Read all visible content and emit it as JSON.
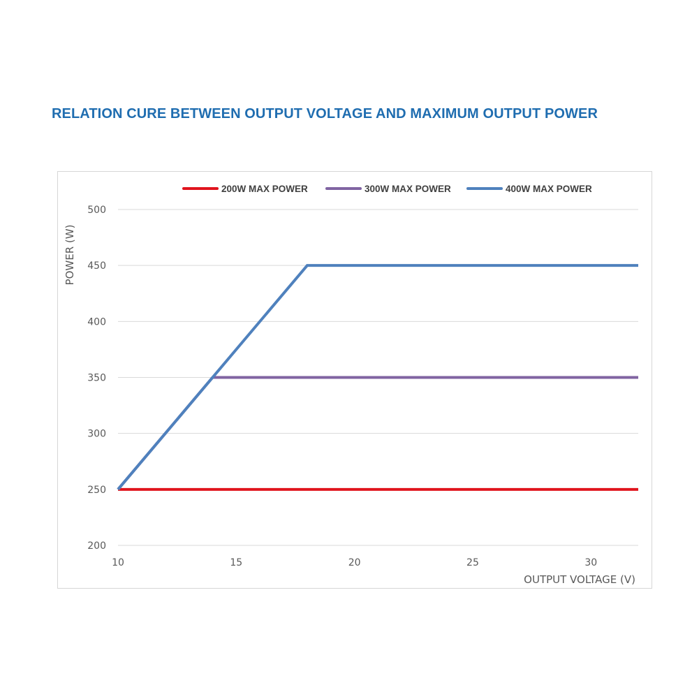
{
  "title": "RELATION CURE BETWEEN OUTPUT VOLTAGE AND MAXIMUM OUTPUT POWER",
  "chart_data": {
    "type": "line",
    "title": "RELATION CURE BETWEEN OUTPUT VOLTAGE AND MAXIMUM OUTPUT POWER",
    "xlabel": "OUTPUT VOLTAGE (V)",
    "ylabel": "POWER (W)",
    "xlim": [
      10,
      32
    ],
    "ylim": [
      200,
      500
    ],
    "xticks": [
      10,
      15,
      20,
      25,
      30
    ],
    "yticks": [
      200,
      250,
      300,
      350,
      400,
      450,
      500
    ],
    "grid": "horizontal",
    "legend_position": "top",
    "series": [
      {
        "name": "200W MAX POWER",
        "color": "#e0141e",
        "x": [
          10,
          32
        ],
        "y": [
          250,
          250
        ]
      },
      {
        "name": "300W MAX POWER",
        "color": "#8064a2",
        "x": [
          10,
          14,
          32
        ],
        "y": [
          250,
          350,
          350
        ]
      },
      {
        "name": "400W MAX POWER",
        "color": "#4f81bd",
        "x": [
          10,
          18,
          32
        ],
        "y": [
          250,
          450,
          450
        ]
      }
    ]
  }
}
